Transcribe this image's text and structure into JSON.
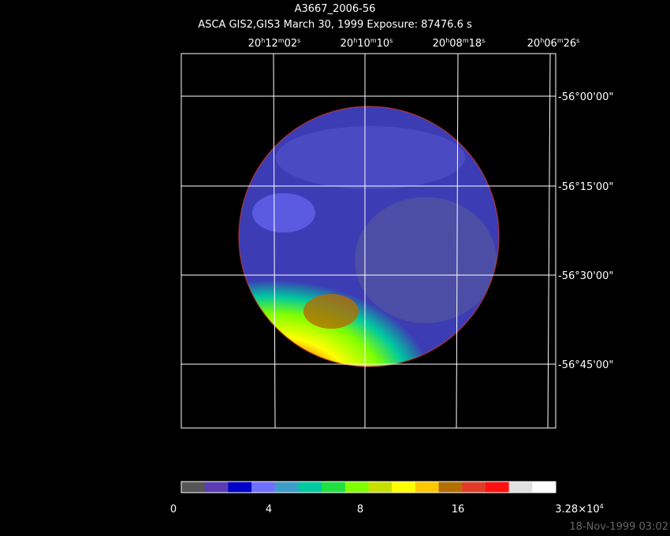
{
  "header": {
    "title": "A3667_2006-56",
    "subtitle": "ASCA GIS2,GIS3 March 30, 1999 Exposure: 87476.6 s"
  },
  "ra_labels": [
    [
      "20",
      "h",
      "12",
      "m",
      "02",
      "s"
    ],
    [
      "20",
      "h",
      "10",
      "m",
      "10",
      "s"
    ],
    [
      "20",
      "h",
      "08",
      "m",
      "18",
      "s"
    ],
    [
      "20",
      "h",
      "06",
      "m",
      "26",
      "s"
    ]
  ],
  "dec_labels": [
    "-56°00'00\"",
    "-56°15'00\"",
    "-56°30'00\"",
    "-56°45'00\""
  ],
  "colorbar": {
    "colors": [
      "#555555",
      "#5a3cb4",
      "#0000c8",
      "#7070ff",
      "#3c9ec8",
      "#00c8a0",
      "#20e040",
      "#80ff00",
      "#c8e000",
      "#ffff00",
      "#ffc800",
      "#b46e00",
      "#e03c28",
      "#ff1010",
      "#e0e0e0",
      "#ffffff"
    ],
    "ticks": [
      0,
      4,
      8,
      16
    ],
    "max_label": [
      "3.28×10",
      "4"
    ]
  },
  "timestamp": "18-Nov-1999 03:02"
}
